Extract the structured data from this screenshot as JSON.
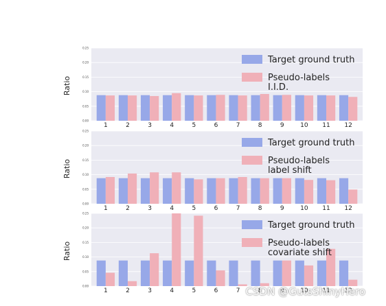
{
  "colors": {
    "panel_bg": "#eaeaf2",
    "grid": "#ffffff",
    "target": "#97a8e8",
    "pseudo": "#f0b0b8"
  },
  "chart_data": [
    {
      "type": "bar",
      "ylabel": "Ratio",
      "ylim": [
        0,
        0.25
      ],
      "yticks": [
        "0.00",
        "0.05",
        "0.10",
        "0.15",
        "0.20",
        "0.25"
      ],
      "categories": [
        "1",
        "2",
        "3",
        "4",
        "5",
        "6",
        "7",
        "8",
        "9",
        "10",
        "11",
        "12"
      ],
      "legend_position": "top-right",
      "series": [
        {
          "name": "Target ground truth",
          "color": "#97a8e8",
          "values": [
            0.088,
            0.088,
            0.088,
            0.088,
            0.088,
            0.088,
            0.088,
            0.088,
            0.088,
            0.088,
            0.088,
            0.088
          ]
        },
        {
          "name": "Pseudo-labels\n I.I.D.",
          "color": "#f0b0b8",
          "values": [
            0.087,
            0.087,
            0.085,
            0.095,
            0.087,
            0.089,
            0.087,
            0.092,
            0.089,
            0.087,
            0.087,
            0.082
          ]
        }
      ]
    },
    {
      "type": "bar",
      "ylabel": "Ratio",
      "ylim": [
        0,
        0.25
      ],
      "yticks": [
        "0.00",
        "0.05",
        "0.10",
        "0.15",
        "0.20",
        "0.25"
      ],
      "categories": [
        "1",
        "2",
        "3",
        "4",
        "5",
        "6",
        "7",
        "8",
        "9",
        "10",
        "11",
        "12"
      ],
      "legend_position": "top-right",
      "series": [
        {
          "name": "Target ground truth",
          "color": "#97a8e8",
          "values": [
            0.088,
            0.088,
            0.088,
            0.088,
            0.088,
            0.088,
            0.088,
            0.088,
            0.088,
            0.088,
            0.088,
            0.088
          ]
        },
        {
          "name": "Pseudo-labels\n label shift",
          "color": "#f0b0b8",
          "values": [
            0.092,
            0.104,
            0.108,
            0.108,
            0.084,
            0.088,
            0.092,
            0.088,
            0.088,
            0.082,
            0.081,
            0.049
          ]
        }
      ]
    },
    {
      "type": "bar",
      "ylabel": "Ratio",
      "ylim": [
        0,
        0.25
      ],
      "yticks": [
        "0.00",
        "0.05",
        "0.10",
        "0.15",
        "0.20",
        "0.25"
      ],
      "categories": [
        "1",
        "2",
        "3",
        "4",
        "5",
        "6",
        "7",
        "8",
        "9",
        "10",
        "11",
        "12"
      ],
      "legend_position": "top-right",
      "series": [
        {
          "name": "Target ground truth",
          "color": "#97a8e8",
          "values": [
            0.088,
            0.088,
            0.088,
            0.088,
            0.088,
            0.088,
            0.088,
            0.088,
            0.088,
            0.088,
            0.088,
            0.088
          ]
        },
        {
          "name": "Pseudo-labels\n covariate shift",
          "color": "#f0b0b8",
          "values": [
            0.046,
            0.017,
            0.113,
            0.25,
            0.242,
            0.054,
            0.006,
            0.01,
            0.088,
            0.071,
            0.128,
            0.022
          ]
        }
      ]
    }
  ],
  "watermark": "CSDN @GutsShinyHero"
}
